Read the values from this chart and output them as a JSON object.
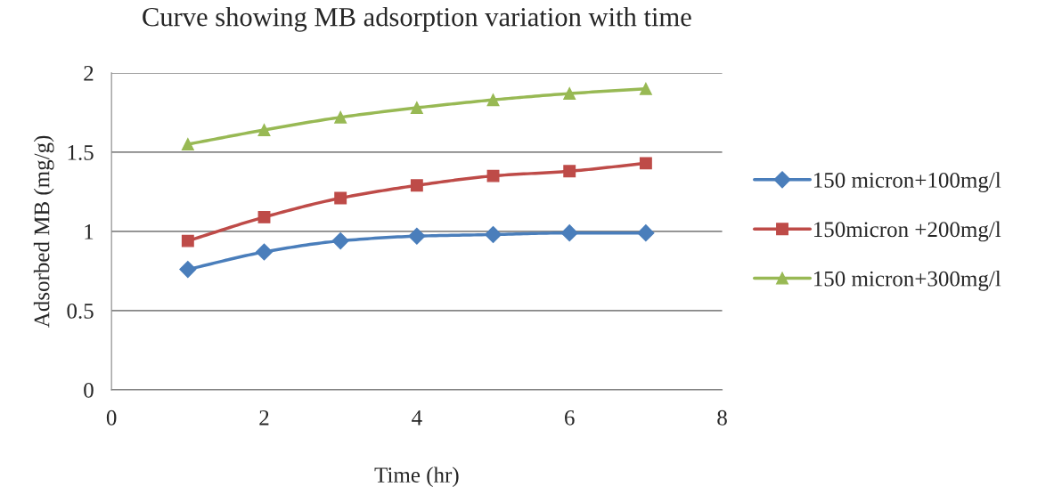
{
  "chart_data": {
    "type": "line",
    "title": "Curve showing MB adsorption variation with time",
    "xlabel": "Time (hr)",
    "ylabel": "Adsorbed MB (mg/g)",
    "x": [
      1,
      2,
      3,
      4,
      5,
      6,
      7
    ],
    "series": [
      {
        "name": "150 micron+100mg/l",
        "color": "#4a7ebb",
        "marker": "diamond",
        "values": [
          0.76,
          0.87,
          0.94,
          0.97,
          0.98,
          0.99,
          0.99
        ]
      },
      {
        "name": "150micron +200mg/l",
        "color": "#be4b48",
        "marker": "square",
        "values": [
          0.94,
          1.09,
          1.21,
          1.29,
          1.35,
          1.38,
          1.43
        ]
      },
      {
        "name": "150 micron+300mg/l",
        "color": "#98b954",
        "marker": "triangle",
        "values": [
          1.55,
          1.64,
          1.72,
          1.78,
          1.83,
          1.87,
          1.9
        ]
      }
    ],
    "xlim": [
      0,
      8
    ],
    "xticks": [
      0,
      2,
      4,
      6,
      8
    ],
    "ylim": [
      0,
      2
    ],
    "yticks": [
      0,
      0.5,
      1,
      1.5,
      2
    ],
    "grid": "y",
    "legend": "right",
    "line_style": "solid"
  }
}
